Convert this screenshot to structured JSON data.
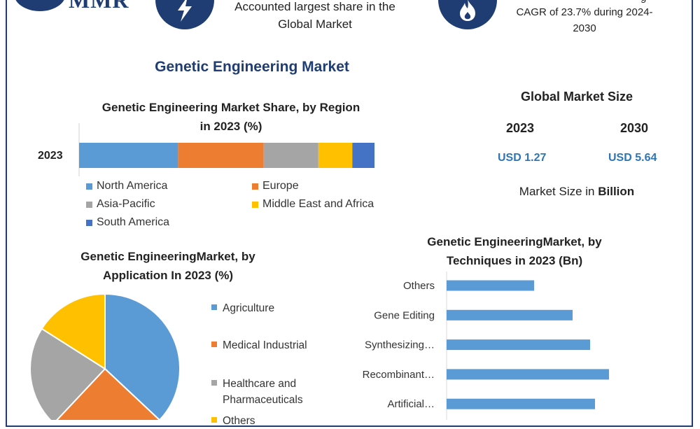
{
  "brand": {
    "logo_text": "MMR"
  },
  "header": {
    "card1_text": [
      "Accounted largest share in the",
      "Global Market"
    ],
    "card2_text": [
      "CAGR of 23.7% during 2024-",
      "2030"
    ],
    "card2_partial_text": "g"
  },
  "main_title": "Genetic Engineering Market",
  "market_size": {
    "title": "Global Market Size",
    "years": [
      "2023",
      "2030"
    ],
    "values": [
      "USD 1.27",
      "USD 5.64"
    ],
    "unit_prefix": "Market Size in ",
    "unit_bold": "Billion"
  },
  "colors": {
    "north_america": "#5b9bd5",
    "europe": "#ed7d31",
    "asia_pacific": "#a5a5a5",
    "mea": "#ffc000",
    "south_america": "#4472c4",
    "brand": "#1f3d73",
    "value_blue": "#2e75b6"
  },
  "chart_data": [
    {
      "type": "bar",
      "orientation": "horizontal-stacked",
      "title_lines": [
        "Genetic Engineering Market Share, by Region",
        "in 2023 (%)"
      ],
      "categories": [
        "2023"
      ],
      "series": [
        {
          "name": "North America",
          "values": [
            33.5
          ],
          "color": "#5b9bd5"
        },
        {
          "name": "Europe",
          "values": [
            29
          ],
          "color": "#ed7d31"
        },
        {
          "name": "Asia-Pacific",
          "values": [
            18.5
          ],
          "color": "#a5a5a5"
        },
        {
          "name": "Middle East and Africa",
          "values": [
            11.5
          ],
          "color": "#ffc000"
        },
        {
          "name": "South America",
          "values": [
            7.5
          ],
          "color": "#4472c4"
        }
      ],
      "legend_placement": "bottom"
    },
    {
      "type": "pie",
      "title_lines": [
        "Genetic EngineeringMarket, by",
        "Application In 2023 (%)"
      ],
      "labels": [
        "Agriculture",
        "Medical Industrial",
        "Healthcare and Pharmaceuticals",
        "Others"
      ],
      "legend_lines": [
        [
          "Agriculture"
        ],
        [
          "Medical Industrial"
        ],
        [
          "Healthcare and",
          "Pharmaceuticals"
        ],
        [
          "Others"
        ]
      ],
      "values": [
        37,
        25,
        22,
        16
      ],
      "colors": [
        "#5b9bd5",
        "#ed7d31",
        "#a5a5a5",
        "#ffc000"
      ],
      "legend_placement": "right"
    },
    {
      "type": "bar",
      "orientation": "horizontal",
      "title_lines": [
        "Genetic EngineeringMarket, by",
        "Techniques in 2023 (Bn)"
      ],
      "categories": [
        "Others",
        "Gene Editing",
        "Synthesizing…",
        "Recombinant…",
        "Artificial…"
      ],
      "values": [
        0.125,
        0.18,
        0.205,
        0.232,
        0.212
      ],
      "xlim": [
        0,
        0.3
      ],
      "color": "#5b9bd5",
      "grid": false
    }
  ]
}
